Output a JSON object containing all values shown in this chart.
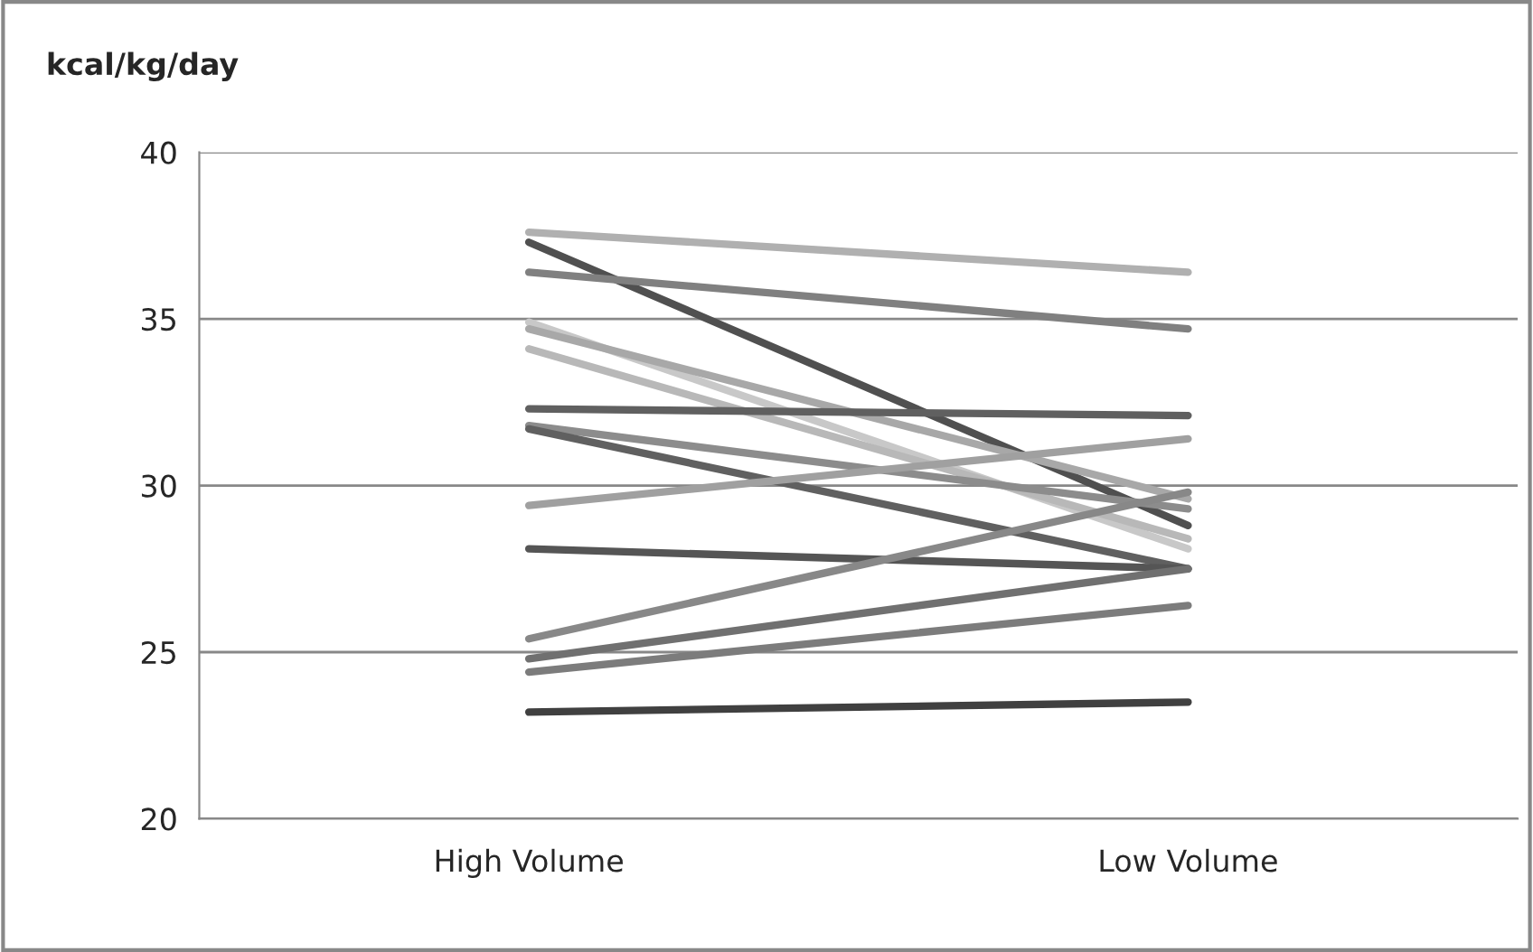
{
  "chart_data": {
    "type": "line",
    "ylabel": "kcal/kg/day",
    "categories": [
      "High Volume",
      "Low Volume"
    ],
    "ylim": [
      20,
      40
    ],
    "yticks": [
      20,
      25,
      30,
      35,
      40
    ],
    "grid": "y",
    "legend": false,
    "marker": "none",
    "line_style": "solid",
    "series": [
      {
        "color": "#b0b0b0",
        "values": [
          37.6,
          36.4
        ]
      },
      {
        "color": "#505050",
        "values": [
          37.3,
          28.8
        ]
      },
      {
        "color": "#808080",
        "values": [
          36.4,
          34.7
        ]
      },
      {
        "color": "#c8c8c8",
        "values": [
          34.9,
          28.1
        ]
      },
      {
        "color": "#a8a8a8",
        "values": [
          34.7,
          29.6
        ]
      },
      {
        "color": "#b8b8b8",
        "values": [
          34.1,
          28.4
        ]
      },
      {
        "color": "#606060",
        "values": [
          32.3,
          32.1
        ]
      },
      {
        "color": "#8c8c8c",
        "values": [
          31.8,
          29.3
        ]
      },
      {
        "color": "#606060",
        "values": [
          31.7,
          27.5
        ]
      },
      {
        "color": "#a0a0a0",
        "values": [
          29.4,
          31.4
        ]
      },
      {
        "color": "#555555",
        "values": [
          28.1,
          27.5
        ]
      },
      {
        "color": "#888888",
        "values": [
          25.4,
          29.8
        ]
      },
      {
        "color": "#707070",
        "values": [
          24.8,
          27.5
        ]
      },
      {
        "color": "#7c7c7c",
        "values": [
          24.4,
          26.4
        ]
      },
      {
        "color": "#404040",
        "values": [
          23.2,
          23.5
        ]
      }
    ]
  }
}
